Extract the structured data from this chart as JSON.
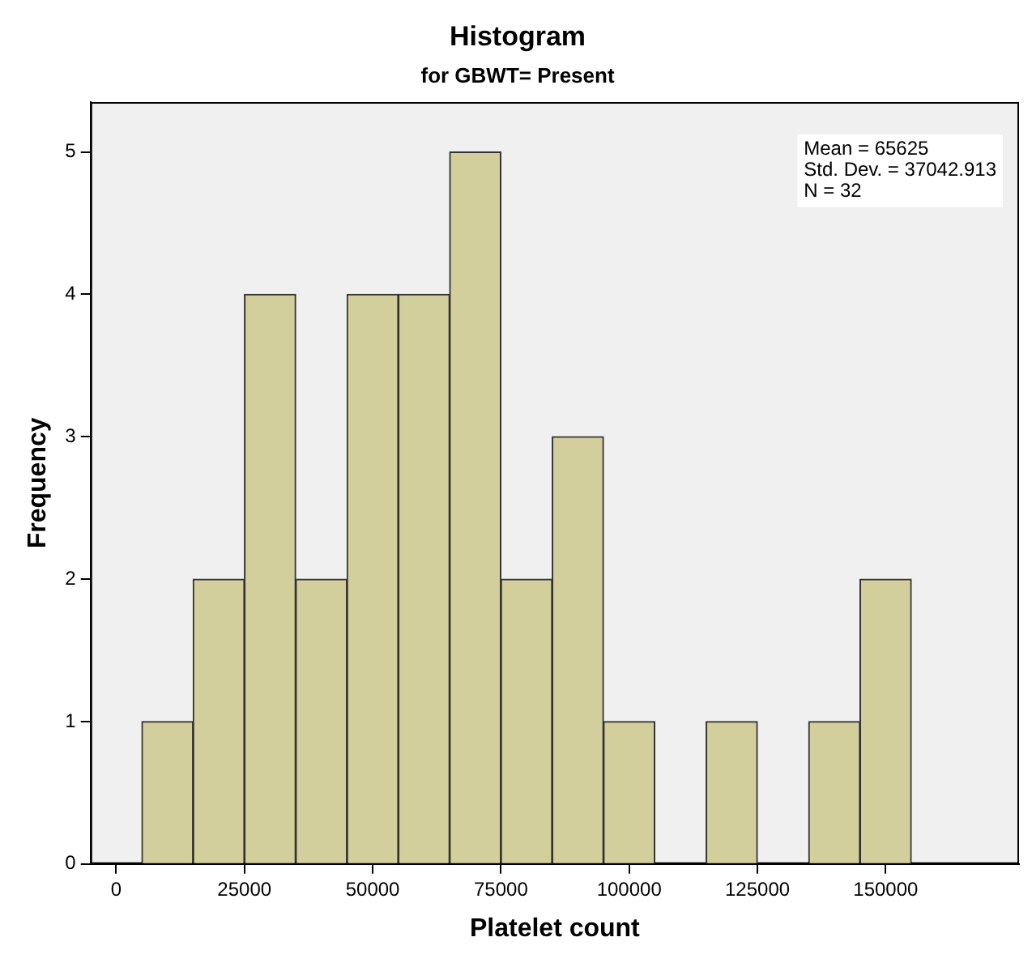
{
  "chart_data": {
    "type": "histogram",
    "title": "Histogram",
    "subtitle": "for GBWT= Present",
    "xlabel": "Platelet count",
    "ylabel": "Frequency",
    "bins": [
      5000,
      15000,
      25000,
      35000,
      45000,
      55000,
      65000,
      75000,
      85000,
      95000,
      105000,
      115000,
      125000,
      135000,
      145000,
      155000
    ],
    "values": [
      1,
      2,
      4,
      2,
      4,
      4,
      5,
      2,
      3,
      1,
      0,
      1,
      0,
      1,
      2
    ],
    "color": "#d3cf9c",
    "xlim": [
      -5000,
      176000
    ],
    "xticks": [
      0,
      25000,
      50000,
      75000,
      100000,
      125000,
      150000
    ],
    "ylim": [
      0,
      5.35
    ],
    "yticks": [
      0,
      1,
      2,
      3,
      4,
      5
    ],
    "grid": false,
    "legend": false,
    "annotations": [
      "Mean = 65625",
      "Std. Dev. = 37042.913",
      "N = 32"
    ]
  }
}
